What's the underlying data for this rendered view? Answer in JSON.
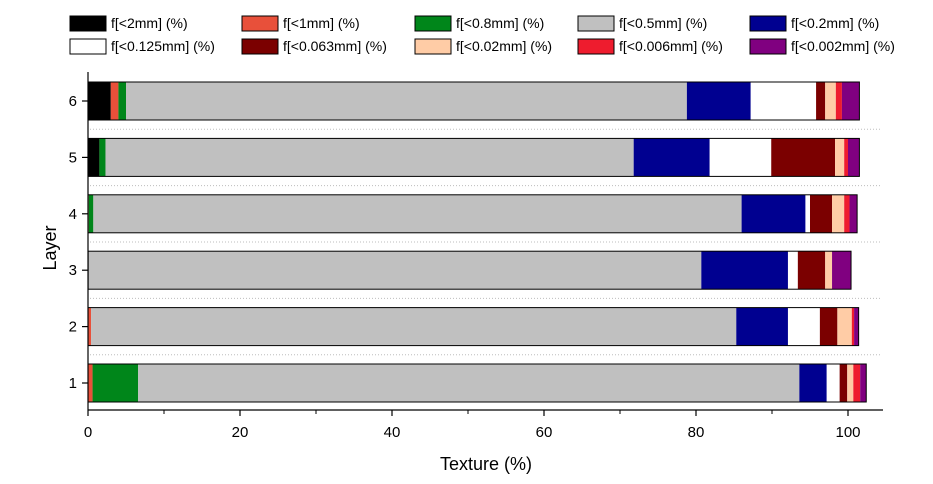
{
  "chart_data": {
    "type": "bar",
    "orientation": "horizontal",
    "stacked": true,
    "xlabel": "Texture (%)",
    "ylabel": "Layer",
    "xlim": [
      0,
      104
    ],
    "xticks": [
      "0",
      "20",
      "40",
      "60",
      "80",
      "100"
    ],
    "categories": [
      "1",
      "2",
      "3",
      "4",
      "5",
      "6"
    ],
    "series": [
      {
        "name": "f[<2mm] (%)",
        "color": "#000000",
        "values": [
          0,
          0,
          0.1,
          0,
          1.5,
          3.0
        ]
      },
      {
        "name": "f[<1mm] (%)",
        "color": "#e8503a",
        "values": [
          0.6,
          0.4,
          0,
          0.1,
          0,
          1.0
        ]
      },
      {
        "name": "f[<0.8mm] (%)",
        "color": "#00861a",
        "values": [
          6.0,
          0,
          0,
          0.6,
          0.8,
          1.0
        ]
      },
      {
        "name": "f[<0.5mm] (%)",
        "color": "#c0c0c0",
        "values": [
          87.0,
          84.9,
          80.6,
          85.3,
          69.5,
          73.8
        ]
      },
      {
        "name": "f[<0.2mm] (%)",
        "color": "#000090",
        "values": [
          3.6,
          6.8,
          11.4,
          8.4,
          10.0,
          8.4
        ]
      },
      {
        "name": "f[<0.125mm] (%)",
        "color": "#ffffff",
        "values": [
          1.7,
          4.2,
          1.3,
          0.6,
          8.1,
          8.6
        ]
      },
      {
        "name": "f[<0.063mm] (%)",
        "color": "#7b0000",
        "values": [
          1.0,
          2.3,
          3.6,
          2.9,
          8.4,
          1.2
        ]
      },
      {
        "name": "f[<0.02mm] (%)",
        "color": "#ffcca6",
        "values": [
          0.8,
          1.9,
          0.9,
          1.6,
          1.2,
          1.4
        ]
      },
      {
        "name": "f[<0.006mm] (%)",
        "color": "#ee1c2e",
        "values": [
          0.9,
          0.3,
          0,
          0.7,
          0.5,
          0.8
        ]
      },
      {
        "name": "f[<0.002mm] (%)",
        "color": "#800080",
        "values": [
          0.8,
          0.6,
          2.5,
          1.0,
          1.5,
          2.3
        ]
      }
    ],
    "grid": false,
    "legend_position": "top"
  }
}
